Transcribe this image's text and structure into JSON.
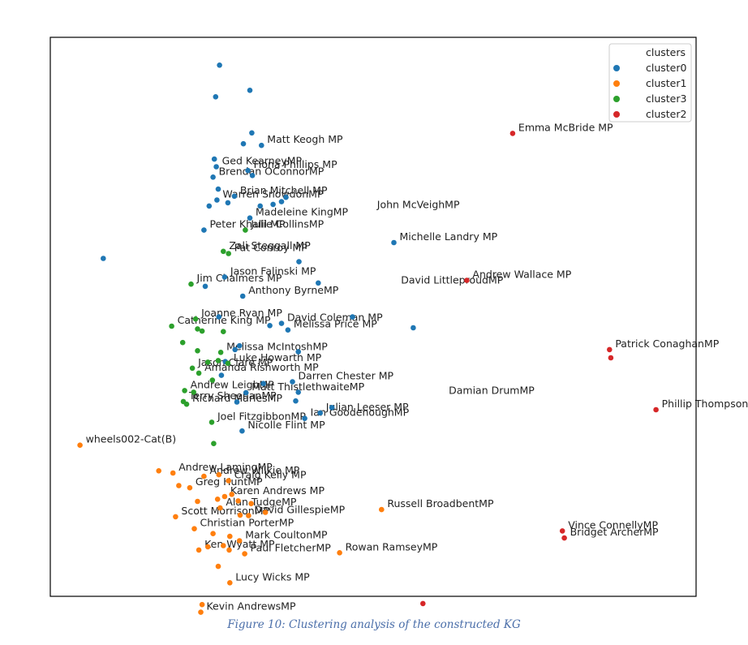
{
  "caption": "Figure 10: Clustering analysis of the constructed KG",
  "chart_data": {
    "type": "scatter",
    "title": "",
    "xlabel": "",
    "ylabel": "",
    "xlim": [
      0,
      100
    ],
    "ylim": [
      0,
      100
    ],
    "axes_ticks": false,
    "grid": false,
    "legend": {
      "title": "clusters",
      "placement": "top-right",
      "entries": [
        {
          "name": "cluster0",
          "color": "#1f77b4"
        },
        {
          "name": "cluster1",
          "color": "#ff7f0e"
        },
        {
          "name": "cluster3",
          "color": "#2ca02c"
        },
        {
          "name": "cluster2",
          "color": "#d62728"
        }
      ]
    },
    "series": [
      {
        "name": "cluster0",
        "color": "#1f77b4",
        "points": [
          {
            "x": 26.2,
            "y": 95.2
          },
          {
            "x": 30.9,
            "y": 90.6
          },
          {
            "x": 25.6,
            "y": 89.4
          },
          {
            "x": 31.2,
            "y": 82.8
          },
          {
            "x": 32.7,
            "y": 80.5,
            "label": "Matt Keogh MP"
          },
          {
            "x": 29.9,
            "y": 80.8
          },
          {
            "x": 25.4,
            "y": 78.0
          },
          {
            "x": 25.7,
            "y": 76.6,
            "label": "Ged KearneyMP"
          },
          {
            "x": 30.6,
            "y": 75.9,
            "label": "Fiona Phillips MP"
          },
          {
            "x": 31.3,
            "y": 75.0
          },
          {
            "x": 25.2,
            "y": 74.7,
            "label": "Brendan OConnorMP"
          },
          {
            "x": 26.0,
            "y": 72.5
          },
          {
            "x": 28.5,
            "y": 71.2,
            "label": "Brian Mitchell MP"
          },
          {
            "x": 25.8,
            "y": 70.5,
            "label": "Warren SnowdonMP"
          },
          {
            "x": 24.6,
            "y": 69.4
          },
          {
            "x": 27.5,
            "y": 70.0
          },
          {
            "x": 32.5,
            "y": 69.4
          },
          {
            "x": 34.5,
            "y": 69.7
          },
          {
            "x": 36.5,
            "y": 71.0
          },
          {
            "x": 35.8,
            "y": 70.2
          },
          {
            "x": 30.9,
            "y": 67.2,
            "label": "Madeleine KingMP"
          },
          {
            "x": 23.8,
            "y": 65.0,
            "label": "Peter Khalil MP"
          },
          {
            "x": 53.2,
            "y": 62.7,
            "label": "Michelle Landry MP"
          },
          {
            "x": 8.2,
            "y": 59.8
          },
          {
            "x": 38.5,
            "y": 59.2
          },
          {
            "x": 27.0,
            "y": 56.4,
            "label": "Jason Falinski MP"
          },
          {
            "x": 24.0,
            "y": 54.7
          },
          {
            "x": 29.8,
            "y": 52.9,
            "label": "Anthony ByrneMP"
          },
          {
            "x": 41.5,
            "y": 55.3
          },
          {
            "x": 26.1,
            "y": 49.1
          },
          {
            "x": 35.8,
            "y": 47.9,
            "label": "David Coleman MP"
          },
          {
            "x": 34.0,
            "y": 47.5
          },
          {
            "x": 36.8,
            "y": 46.7,
            "label": "Melissa Price MP"
          },
          {
            "x": 46.8,
            "y": 49.1
          },
          {
            "x": 56.2,
            "y": 47.1
          },
          {
            "x": 28.6,
            "y": 43.1
          },
          {
            "x": 29.3,
            "y": 43.8
          },
          {
            "x": 38.4,
            "y": 42.7
          },
          {
            "x": 27.1,
            "y": 40.9
          },
          {
            "x": 26.5,
            "y": 38.4
          },
          {
            "x": 33.0,
            "y": 36.9
          },
          {
            "x": 37.5,
            "y": 37.2,
            "label": "Darren Chester MP"
          },
          {
            "x": 38.4,
            "y": 35.3
          },
          {
            "x": 38.0,
            "y": 33.7
          },
          {
            "x": 41.8,
            "y": 31.5,
            "label": "Julian Leeser MP"
          },
          {
            "x": 43.6,
            "y": 32.5
          },
          {
            "x": 39.4,
            "y": 30.5,
            "label": "Ian GoodenoughMP"
          },
          {
            "x": 30.3,
            "y": 35.2,
            "label": "Matt ThistlethwaiteMP"
          },
          {
            "x": 28.9,
            "y": 33.5
          },
          {
            "x": 29.7,
            "y": 28.2,
            "label": "Nicolle Flint MP"
          }
        ]
      },
      {
        "name": "cluster1",
        "color": "#ff7f0e",
        "points": [
          {
            "x": 4.6,
            "y": 25.6,
            "label": "wheels002-Cat(B)"
          },
          {
            "x": 16.8,
            "y": 20.9
          },
          {
            "x": 19.0,
            "y": 20.5,
            "label": "Andrew LamingMP"
          },
          {
            "x": 23.8,
            "y": 19.9,
            "label": "Andrew Wilkie MP"
          },
          {
            "x": 26.1,
            "y": 20.2
          },
          {
            "x": 27.6,
            "y": 19.1,
            "label": "Craig Kelly MP"
          },
          {
            "x": 19.9,
            "y": 18.2
          },
          {
            "x": 21.6,
            "y": 17.8,
            "label": "Greg HuntMP"
          },
          {
            "x": 22.8,
            "y": 15.3
          },
          {
            "x": 25.9,
            "y": 15.7
          },
          {
            "x": 27.0,
            "y": 16.2,
            "label": "Karen Andrews MP"
          },
          {
            "x": 28.1,
            "y": 16.6
          },
          {
            "x": 29.1,
            "y": 15.4
          },
          {
            "x": 31.1,
            "y": 14.9
          },
          {
            "x": 26.3,
            "y": 14.1,
            "label": "Alan TudgeMP"
          },
          {
            "x": 29.4,
            "y": 12.8
          },
          {
            "x": 30.7,
            "y": 12.7,
            "label": "David GillespieMP"
          },
          {
            "x": 33.3,
            "y": 13.3
          },
          {
            "x": 51.3,
            "y": 13.8,
            "label": "Russell BroadbentMP"
          },
          {
            "x": 19.4,
            "y": 12.5,
            "label": "Scott MorrisonMP"
          },
          {
            "x": 22.3,
            "y": 10.3,
            "label": "Christian PorterMP"
          },
          {
            "x": 25.2,
            "y": 9.4
          },
          {
            "x": 27.8,
            "y": 8.9
          },
          {
            "x": 29.3,
            "y": 8.1,
            "label": "Mark CoultonMP"
          },
          {
            "x": 24.4,
            "y": 7.0
          },
          {
            "x": 26.8,
            "y": 7.2
          },
          {
            "x": 27.7,
            "y": 6.4
          },
          {
            "x": 23.0,
            "y": 6.4,
            "label": "Ken Wyatt MP"
          },
          {
            "x": 30.1,
            "y": 5.7,
            "label": "Paul FletcherMP"
          },
          {
            "x": 44.8,
            "y": 5.9,
            "label": "Rowan RamseyMP"
          },
          {
            "x": 26.0,
            "y": 3.4
          },
          {
            "x": 27.8,
            "y": 0.4,
            "label": "Lucy Wicks MP"
          },
          {
            "x": 23.5,
            "y": -3.6
          },
          {
            "x": 23.3,
            "y": -5.0,
            "label": "Kevin AndrewsMP"
          }
        ]
      },
      {
        "name": "cluster3",
        "color": "#2ca02c",
        "points": [
          {
            "x": 30.2,
            "y": 65.0,
            "label": "Julie CollinsMP"
          },
          {
            "x": 26.8,
            "y": 61.1,
            "label": "Zali Steggall MP"
          },
          {
            "x": 27.6,
            "y": 60.7,
            "label": "Pat Conroy MP"
          },
          {
            "x": 21.8,
            "y": 55.1,
            "label": "Jim Chalmers MP"
          },
          {
            "x": 22.5,
            "y": 48.7,
            "label": "Joanne Ryan MP"
          },
          {
            "x": 18.8,
            "y": 47.4,
            "label": "Catherine King MP"
          },
          {
            "x": 23.5,
            "y": 46.5
          },
          {
            "x": 22.8,
            "y": 46.9
          },
          {
            "x": 26.8,
            "y": 46.4
          },
          {
            "x": 20.5,
            "y": 44.4
          },
          {
            "x": 26.4,
            "y": 42.6,
            "label": "Melissa McIntoshMP"
          },
          {
            "x": 27.5,
            "y": 40.6,
            "label": "Luke Howarth MP"
          },
          {
            "x": 22.8,
            "y": 42.9
          },
          {
            "x": 24.4,
            "y": 40.8
          },
          {
            "x": 22.0,
            "y": 39.7,
            "label": "Jason Clare MP"
          },
          {
            "x": 26.0,
            "y": 41.1
          },
          {
            "x": 23.0,
            "y": 38.8,
            "label": "Amanda Rishworth MP"
          },
          {
            "x": 25.1,
            "y": 37.5
          },
          {
            "x": 20.8,
            "y": 35.6,
            "label": "Andrew LeighMP"
          },
          {
            "x": 22.2,
            "y": 35.3
          },
          {
            "x": 20.6,
            "y": 33.6,
            "label": "Terry SheehanMP"
          },
          {
            "x": 21.1,
            "y": 33.1,
            "label": "Richard MarlesMP"
          },
          {
            "x": 25.0,
            "y": 29.8,
            "label": "Joel FitzgibbonMP"
          },
          {
            "x": 25.3,
            "y": 25.9
          }
        ]
      },
      {
        "name": "cluster2",
        "color": "#d62728",
        "points": [
          {
            "x": 71.6,
            "y": 82.7,
            "label": "Emma McBride MP"
          },
          {
            "x": 64.5,
            "y": 55.8,
            "label": "Andrew Wallace MP"
          },
          {
            "x": 86.6,
            "y": 43.1,
            "label": "Patrick ConaghanMP"
          },
          {
            "x": 86.8,
            "y": 41.6
          },
          {
            "x": 93.8,
            "y": 32.1,
            "label": "Phillip Thompson OAM MP"
          },
          {
            "x": 79.3,
            "y": 9.9,
            "label": "Vince ConnellyMP"
          },
          {
            "x": 79.6,
            "y": 8.6,
            "label": "Bridget ArcherMP"
          },
          {
            "x": 57.7,
            "y": -3.4
          }
        ]
      }
    ],
    "extra_labels": [
      {
        "text": "John McVeighMP",
        "x": 50.6,
        "y": 69.0,
        "cluster": "cluster0"
      },
      {
        "text": "David LittleproudMP",
        "x": 54.3,
        "y": 55.2,
        "cluster": "cluster0"
      },
      {
        "text": "Damian DrumMP",
        "x": 61.7,
        "y": 35.0,
        "cluster": "cluster0"
      }
    ]
  }
}
